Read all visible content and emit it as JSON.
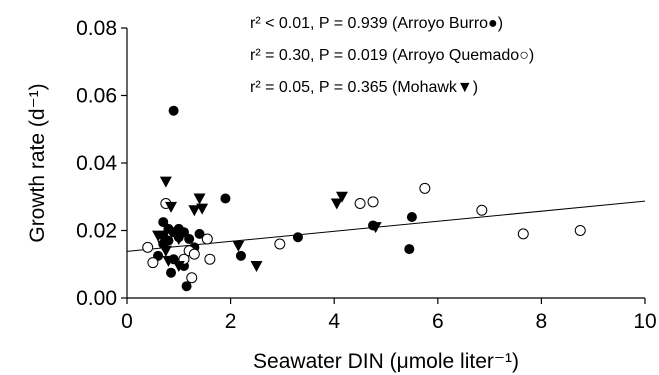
{
  "chart_data": {
    "type": "scatter",
    "xlabel": "Seawater DIN (μmole liter⁻¹)",
    "ylabel": "Growth rate (d⁻¹)",
    "xlim": [
      0,
      10
    ],
    "ylim": [
      0,
      0.08
    ],
    "x_ticks": [
      "0",
      "2",
      "4",
      "6",
      "8",
      "10"
    ],
    "y_ticks": [
      "0.00",
      "0.02",
      "0.04",
      "0.06",
      "0.08"
    ],
    "grid": false,
    "annotations": [
      "r² < 0.01, P = 0.939 (Arroyo Burro●)",
      "r² = 0.30, P = 0.019 (Arroyo Quemado○)",
      "r² = 0.05, P = 0.365 (Mohawk▼)"
    ],
    "series": [
      {
        "name": "Arroyo Burro",
        "marker": "filled-circle",
        "color": "#000000",
        "points": [
          [
            0.9,
            0.0555
          ],
          [
            1.9,
            0.0295
          ],
          [
            0.7,
            0.0225
          ],
          [
            0.8,
            0.0205
          ],
          [
            1.0,
            0.0205
          ],
          [
            1.1,
            0.0195
          ],
          [
            0.9,
            0.0195
          ],
          [
            1.4,
            0.019
          ],
          [
            0.7,
            0.0185
          ],
          [
            1.0,
            0.018
          ],
          [
            1.2,
            0.0175
          ],
          [
            0.8,
            0.017
          ],
          [
            0.7,
            0.016
          ],
          [
            1.3,
            0.015
          ],
          [
            0.6,
            0.0125
          ],
          [
            0.9,
            0.0115
          ],
          [
            1.1,
            0.0095
          ],
          [
            0.85,
            0.0075
          ],
          [
            1.15,
            0.0035
          ],
          [
            2.2,
            0.0125
          ],
          [
            3.3,
            0.018
          ],
          [
            4.75,
            0.0215
          ],
          [
            5.5,
            0.024
          ],
          [
            5.45,
            0.0145
          ]
        ]
      },
      {
        "name": "Arroyo Quemado",
        "marker": "open-circle",
        "color": "#000000",
        "points": [
          [
            0.4,
            0.015
          ],
          [
            0.5,
            0.0105
          ],
          [
            0.75,
            0.028
          ],
          [
            1.1,
            0.0115
          ],
          [
            1.2,
            0.014
          ],
          [
            1.3,
            0.013
          ],
          [
            1.25,
            0.006
          ],
          [
            1.55,
            0.0175
          ],
          [
            1.6,
            0.0115
          ],
          [
            2.95,
            0.016
          ],
          [
            4.5,
            0.028
          ],
          [
            4.75,
            0.0285
          ],
          [
            5.75,
            0.0325
          ],
          [
            6.85,
            0.026
          ],
          [
            7.65,
            0.019
          ],
          [
            8.75,
            0.02
          ]
        ]
      },
      {
        "name": "Mohawk",
        "marker": "filled-triangle-down",
        "color": "#000000",
        "points": [
          [
            0.75,
            0.0345
          ],
          [
            0.85,
            0.027
          ],
          [
            1.45,
            0.0265
          ],
          [
            1.3,
            0.026
          ],
          [
            1.4,
            0.0295
          ],
          [
            0.6,
            0.0185
          ],
          [
            1.0,
            0.0175
          ],
          [
            0.75,
            0.014
          ],
          [
            0.8,
            0.011
          ],
          [
            1.0,
            0.0095
          ],
          [
            2.15,
            0.0155
          ],
          [
            2.5,
            0.0095
          ],
          [
            4.05,
            0.028
          ],
          [
            4.15,
            0.03
          ],
          [
            4.8,
            0.021
          ],
          [
            0.7,
            0.0155
          ]
        ]
      }
    ],
    "fit_line": {
      "series": "Arroyo Quemado",
      "x": [
        0,
        10
      ],
      "y": [
        0.0138,
        0.0287
      ]
    }
  }
}
